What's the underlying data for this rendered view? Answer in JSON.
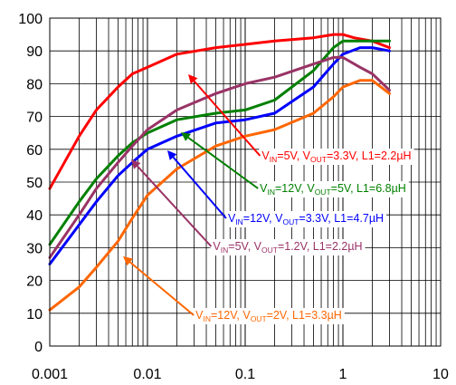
{
  "chart_data": {
    "type": "line",
    "x_scale": "log",
    "xlim": [
      0.001,
      10
    ],
    "ylim": [
      0,
      100
    ],
    "x_ticks": [
      "0.001",
      "0.01",
      "0.1",
      "1",
      "10"
    ],
    "y_ticks": [
      "0",
      "10",
      "20",
      "30",
      "40",
      "50",
      "60",
      "70",
      "80",
      "90",
      "100"
    ],
    "grid": true,
    "series": [
      {
        "label": [
          "V",
          "IN",
          "=5V, V",
          "OUT",
          "=3.3V, L1=2.2µH"
        ],
        "color": "#ff0000",
        "x": [
          0.001,
          0.002,
          0.003,
          0.005,
          0.007,
          0.01,
          0.02,
          0.05,
          0.1,
          0.2,
          0.5,
          0.8,
          1.0,
          1.3,
          2.0,
          3.0
        ],
        "y": [
          48,
          64,
          72,
          79,
          83,
          85,
          89,
          91,
          92,
          93,
          94,
          95,
          95,
          94,
          93,
          91
        ]
      },
      {
        "label": [
          "V",
          "IN",
          "=12V, V",
          "OUT",
          "=5V, L1=6.8µH"
        ],
        "color": "#008000",
        "x": [
          0.001,
          0.002,
          0.003,
          0.005,
          0.007,
          0.01,
          0.02,
          0.05,
          0.1,
          0.2,
          0.5,
          0.8,
          1.0,
          1.5,
          2.0,
          3.0
        ],
        "y": [
          31,
          44,
          51,
          58,
          62,
          65,
          69,
          71,
          72,
          75,
          84,
          91,
          93,
          93,
          93,
          93
        ]
      },
      {
        "label": [
          "V",
          "IN",
          "=12V, V",
          "OUT",
          "=3.3V, L1=4.7µH"
        ],
        "color": "#0000ff",
        "x": [
          0.001,
          0.002,
          0.003,
          0.005,
          0.007,
          0.01,
          0.02,
          0.05,
          0.1,
          0.2,
          0.5,
          0.8,
          1.0,
          1.5,
          2.0,
          3.0
        ],
        "y": [
          25,
          37,
          44,
          52,
          56,
          60,
          64,
          68,
          69,
          71,
          79,
          86,
          89,
          91,
          91,
          90
        ]
      },
      {
        "label": [
          "V",
          "IN",
          "=5V, V",
          "OUT",
          "=1.2V, L1=2.2µH"
        ],
        "color": "#993366",
        "x": [
          0.001,
          0.002,
          0.003,
          0.005,
          0.007,
          0.01,
          0.02,
          0.05,
          0.1,
          0.2,
          0.5,
          0.8,
          1.0,
          1.5,
          2.0,
          3.0
        ],
        "y": [
          27,
          40,
          48,
          56,
          61,
          66,
          72,
          77,
          80,
          82,
          86,
          88,
          88,
          85,
          83,
          78
        ]
      },
      {
        "label": [
          "V",
          "IN",
          "=12V, V",
          "OUT",
          "=2V, L1=3.3µH"
        ],
        "color": "#ff6600",
        "x": [
          0.001,
          0.002,
          0.003,
          0.005,
          0.007,
          0.01,
          0.02,
          0.05,
          0.1,
          0.2,
          0.5,
          0.8,
          1.0,
          1.5,
          2.0,
          3.0
        ],
        "y": [
          11,
          18,
          24,
          32,
          39,
          46,
          54,
          61,
          64,
          66,
          71,
          76,
          79,
          81,
          81,
          77
        ]
      }
    ]
  }
}
